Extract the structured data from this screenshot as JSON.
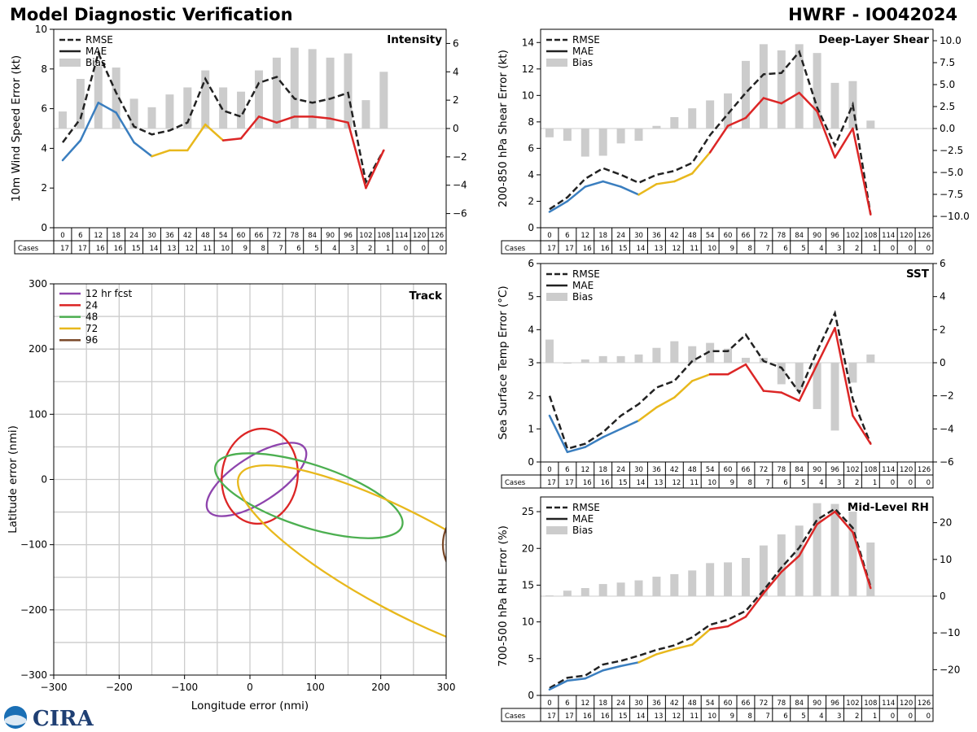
{
  "title": "Model Diagnostic Verification",
  "model_label": "HWRF - IO042024",
  "colors": {
    "blue": "#3a7ebf",
    "yellow": "#e8b81c",
    "red": "#dc2626",
    "rmse": "#222222",
    "bias": "#cccccc",
    "grid": "#cccccc",
    "purple": "#8e44ad",
    "green": "#4caf50",
    "brown": "#7b4a2a"
  },
  "lead_times": [
    0,
    6,
    12,
    18,
    24,
    30,
    36,
    42,
    48,
    54,
    60,
    66,
    72,
    78,
    84,
    90,
    96,
    102,
    108,
    114,
    120,
    126
  ],
  "cases": [
    17,
    17,
    16,
    16,
    15,
    14,
    13,
    12,
    11,
    10,
    9,
    8,
    7,
    6,
    5,
    4,
    3,
    2,
    1,
    0,
    0,
    0
  ],
  "cases_label": "Cases",
  "legend": {
    "rmse": "RMSE",
    "mae": "MAE",
    "bias": "Bias"
  },
  "logo_text": "CIRA",
  "chart_data": [
    {
      "id": "intensity",
      "type": "line",
      "title": "Intensity",
      "ylabel": "10m Wind Speed Error (kt)",
      "ylim": [
        0,
        10
      ],
      "yticks": [
        0,
        2,
        4,
        6,
        8,
        10
      ],
      "y2lim": [
        -7,
        7
      ],
      "y2ticks": [
        -6,
        -4,
        -2,
        0,
        2,
        4,
        6
      ],
      "y2ticklabels": [
        "−6",
        "−4",
        "−2",
        "0",
        "2",
        "4",
        "6"
      ],
      "rmse": [
        4.3,
        5.5,
        8.8,
        6.8,
        5.1,
        4.7,
        4.9,
        5.3,
        7.5,
        5.9,
        5.6,
        7.3,
        7.6,
        6.5,
        6.3,
        6.5,
        6.8,
        2.3,
        3.9,
        null,
        null,
        null
      ],
      "mae": [
        3.4,
        4.4,
        6.3,
        5.8,
        4.3,
        3.6,
        3.9,
        3.9,
        5.2,
        4.4,
        4.5,
        5.6,
        5.3,
        5.6,
        5.6,
        5.5,
        5.3,
        2.0,
        3.9,
        null,
        null,
        null
      ],
      "bias": [
        1.2,
        3.5,
        4.4,
        4.3,
        2.1,
        1.5,
        2.4,
        2.9,
        4.1,
        2.9,
        2.6,
        4.1,
        5.0,
        5.7,
        5.6,
        5.0,
        5.3,
        2.0,
        4.0,
        null,
        null,
        null
      ]
    },
    {
      "id": "shear",
      "type": "line",
      "title": "Deep-Layer Shear",
      "ylabel": "200-850 hPa Shear Error (kt)",
      "ylim": [
        0,
        15
      ],
      "yticks": [
        0,
        2,
        4,
        6,
        8,
        10,
        12,
        14
      ],
      "y2lim": [
        -11.3,
        11.3
      ],
      "y2ticks": [
        -10,
        -7.5,
        -5,
        -2.5,
        0,
        2.5,
        5,
        7.5,
        10
      ],
      "y2ticklabels": [
        "−10.0",
        "−7.5",
        "−5.0",
        "−2.5",
        "0.0",
        "2.5",
        "5.0",
        "7.5",
        "10.0"
      ],
      "rmse": [
        1.4,
        2.3,
        3.7,
        4.5,
        4.0,
        3.4,
        4.0,
        4.3,
        4.9,
        7.0,
        8.6,
        10.2,
        11.6,
        11.7,
        13.3,
        9.1,
        6.2,
        9.3,
        1.0,
        null,
        null,
        null
      ],
      "mae": [
        1.2,
        2.0,
        3.1,
        3.5,
        3.1,
        2.5,
        3.3,
        3.5,
        4.1,
        5.7,
        7.7,
        8.3,
        9.8,
        9.4,
        10.2,
        8.8,
        5.3,
        7.5,
        1.0,
        null,
        null,
        null
      ],
      "bias": [
        -1.0,
        -1.4,
        -3.2,
        -3.1,
        -1.7,
        -1.4,
        0.3,
        1.3,
        2.3,
        3.2,
        4.0,
        7.7,
        9.6,
        8.9,
        9.6,
        8.6,
        5.2,
        5.4,
        0.9,
        null,
        null,
        null
      ]
    },
    {
      "id": "sst",
      "type": "line",
      "title": "SST",
      "ylabel": "Sea Surface Temp Error (°C)",
      "ylim": [
        0,
        6
      ],
      "yticks": [
        0,
        1,
        2,
        3,
        4,
        5,
        6
      ],
      "y2lim": [
        -6,
        6
      ],
      "y2ticks": [
        -6,
        -4,
        -2,
        0,
        2,
        4,
        6
      ],
      "y2ticklabels": [
        "−6",
        "−4",
        "−2",
        "0",
        "2",
        "4",
        "6"
      ],
      "rmse": [
        2.0,
        0.4,
        0.55,
        0.9,
        1.4,
        1.75,
        2.25,
        2.45,
        3.05,
        3.35,
        3.35,
        3.85,
        3.05,
        2.85,
        2.1,
        3.35,
        4.5,
        1.9,
        0.55,
        null,
        null,
        null
      ],
      "mae": [
        1.4,
        0.3,
        0.45,
        0.75,
        1.0,
        1.25,
        1.65,
        1.95,
        2.45,
        2.65,
        2.65,
        2.95,
        2.15,
        2.1,
        1.85,
        2.95,
        4.05,
        1.4,
        0.55,
        null,
        null,
        null
      ],
      "bias": [
        1.4,
        -0.05,
        0.2,
        0.4,
        0.4,
        0.5,
        0.9,
        1.3,
        1.0,
        1.2,
        0.85,
        0.3,
        0.3,
        -1.3,
        -1.6,
        -2.8,
        -4.1,
        -1.2,
        0.5,
        null,
        null,
        null
      ]
    },
    {
      "id": "rh",
      "type": "line",
      "title": "Mid-Level RH",
      "ylabel": "700-500 hPa RH Error (%)",
      "ylim": [
        0,
        27
      ],
      "yticks": [
        0,
        5,
        10,
        15,
        20,
        25
      ],
      "y2lim": [
        -27,
        27
      ],
      "y2ticks": [
        -20,
        -10,
        0,
        10,
        20
      ],
      "y2ticklabels": [
        "−20",
        "−10",
        "0",
        "10",
        "20"
      ],
      "rmse": [
        1.0,
        2.4,
        2.7,
        4.2,
        4.7,
        5.4,
        6.2,
        6.8,
        7.9,
        9.6,
        10.3,
        11.5,
        14.3,
        17.4,
        20.1,
        23.9,
        25.4,
        22.8,
        14.8,
        null,
        null,
        null
      ],
      "mae": [
        0.8,
        2.0,
        2.3,
        3.4,
        4.0,
        4.5,
        5.6,
        6.3,
        6.9,
        9.0,
        9.4,
        10.7,
        13.9,
        16.8,
        19.0,
        23.3,
        25.0,
        22.2,
        14.6,
        null,
        null,
        null
      ],
      "bias": [
        0.2,
        1.5,
        2.2,
        3.3,
        3.7,
        4.3,
        5.3,
        6.0,
        7.0,
        9.0,
        9.2,
        10.4,
        13.8,
        16.8,
        19.2,
        25.3,
        25.1,
        23.0,
        14.6,
        null,
        null,
        null
      ]
    },
    {
      "id": "track",
      "type": "scatter",
      "title": "Track",
      "xlabel": "Longitude error (nmi)",
      "ylabel": "Latitude error (nmi)",
      "xlim": [
        -300,
        300
      ],
      "ylim": [
        -300,
        300
      ],
      "xticks": [
        -300,
        -200,
        -100,
        0,
        100,
        200,
        300
      ],
      "xticklabels": [
        "−300",
        "−200",
        "−100",
        "0",
        "100",
        "200",
        "300"
      ],
      "yticks": [
        -300,
        -200,
        -100,
        0,
        100,
        200,
        300
      ],
      "yticklabels": [
        "−300",
        "−200",
        "−100",
        "0",
        "100",
        "200",
        "300"
      ],
      "ellipses": [
        {
          "label": "12 hr fcst",
          "color": "#8e44ad",
          "cx": 10,
          "cy": 0,
          "a": 88,
          "b": 35,
          "angle": 33
        },
        {
          "label": "24",
          "color": "#dc2626",
          "cx": 15,
          "cy": 5,
          "a": 73,
          "b": 58,
          "angle": 82
        },
        {
          "label": "48",
          "color": "#4caf50",
          "cx": 90,
          "cy": -25,
          "a": 150,
          "b": 48,
          "angle": -18
        },
        {
          "label": "72",
          "color": "#e8b81c",
          "cx": 240,
          "cy": -130,
          "a": 290,
          "b": 75,
          "angle": -28
        },
        {
          "label": "96",
          "color": "#7b4a2a",
          "cx": 420,
          "cy": -100,
          "a": 125,
          "b": 90,
          "angle": 0
        }
      ]
    }
  ]
}
